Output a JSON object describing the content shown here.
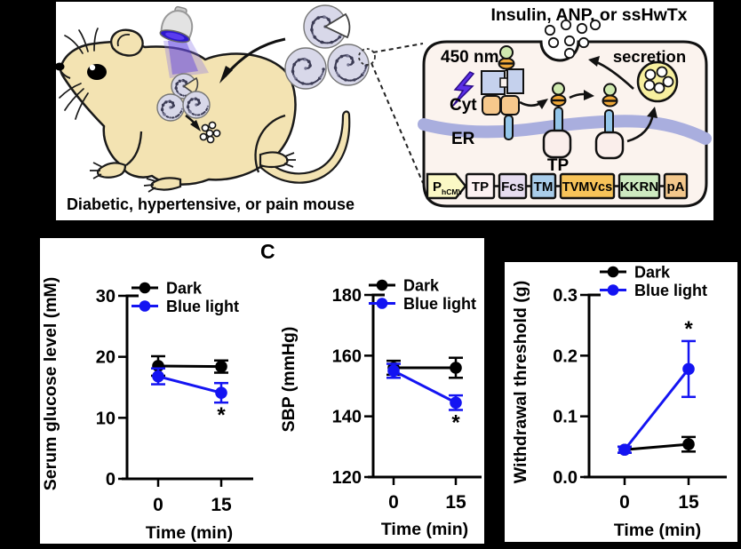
{
  "figure": {
    "panel_label": "C",
    "top_panel": {
      "mouse_caption": "Diabetic, hypertensive, or pain mouse",
      "cell_diagram": {
        "title": "Insulin, ANP, or ssHwTx",
        "labels": {
          "light": "450 nm",
          "cyt": "Cyt",
          "er": "ER",
          "tp": "TP",
          "secretion": "secretion"
        },
        "construct_segments": [
          {
            "label": "P",
            "subscript": "hCMV",
            "color": "#fbf8c5"
          },
          {
            "label": "TP",
            "color": "#fdf2f2"
          },
          {
            "label": "Fcs",
            "color": "#e6dcef"
          },
          {
            "label": "TM",
            "color": "#a9cdea"
          },
          {
            "label": "TVMVcs",
            "color": "#f7c359"
          },
          {
            "label": "KKRN",
            "color": "#cdeac0"
          },
          {
            "label": "pA",
            "color": "#f3c78c"
          }
        ]
      }
    }
  },
  "chart_data": [
    {
      "type": "line",
      "ylabel": "Serum glucose level (mM)",
      "xlabel": "Time (min)",
      "x": [
        0,
        15
      ],
      "x_tick_labels": [
        "0",
        "15"
      ],
      "y_tick_labels": [
        "0",
        "10",
        "20",
        "30"
      ],
      "ylim": [
        0,
        30
      ],
      "legend_position": "top-inside",
      "series": [
        {
          "name": "Dark",
          "color": "#000000",
          "values": [
            18.5,
            18.4
          ],
          "errors": [
            1.6,
            1.0
          ]
        },
        {
          "name": "Blue light",
          "color": "#1414f2",
          "values": [
            16.8,
            14.1
          ],
          "errors": [
            1.3,
            1.6
          ]
        }
      ],
      "annotations": [
        {
          "text": "*",
          "series": "Blue light",
          "point_index": 1,
          "position": "below"
        }
      ]
    },
    {
      "type": "line",
      "ylabel": "SBP (mmHg)",
      "xlabel": "Time (min)",
      "x": [
        0,
        15
      ],
      "x_tick_labels": [
        "0",
        "15"
      ],
      "y_tick_labels": [
        "120",
        "140",
        "160",
        "180"
      ],
      "ylim": [
        120,
        180
      ],
      "legend_position": "top-inside",
      "series": [
        {
          "name": "Dark",
          "color": "#000000",
          "values": [
            156,
            156
          ],
          "errors": [
            2.3,
            3.3
          ]
        },
        {
          "name": "Blue light",
          "color": "#1414f2",
          "values": [
            155,
            144.5
          ],
          "errors": [
            2.3,
            2.4
          ]
        }
      ],
      "annotations": [
        {
          "text": "*",
          "series": "Blue light",
          "point_index": 1,
          "position": "below"
        }
      ]
    },
    {
      "type": "line",
      "ylabel": "Withdrawal threshold (g)",
      "xlabel": "Time (min)",
      "x": [
        0,
        15
      ],
      "x_tick_labels": [
        "0",
        "15"
      ],
      "y_tick_labels": [
        "0.0",
        "0.1",
        "0.2",
        "0.3"
      ],
      "ylim": [
        0,
        0.3
      ],
      "legend_position": "top-inside",
      "series": [
        {
          "name": "Dark",
          "color": "#000000",
          "values": [
            0.045,
            0.054
          ],
          "errors": [
            0.005,
            0.012
          ]
        },
        {
          "name": "Blue light",
          "color": "#1414f2",
          "values": [
            0.045,
            0.178
          ],
          "errors": [
            0.005,
            0.046
          ]
        }
      ],
      "annotations": [
        {
          "text": "*",
          "series": "Blue light",
          "point_index": 1,
          "position": "above"
        }
      ]
    }
  ],
  "colors": {
    "dark_series": "#000000",
    "blue_series": "#1414f2",
    "mouse_body": "#f3e3b2",
    "capsule": "#d8d8e9",
    "cell_fill": "#fbf3ee",
    "er_membrane": "#a9aede",
    "vesicle": "#f8f09f",
    "receptor_blue": "#c5d1ed",
    "cyt_orange": "#f6c88c",
    "bar_blue": "#93c5e8",
    "cargo_green": "#cfe9af",
    "cargo_orange": "#f0a838"
  }
}
